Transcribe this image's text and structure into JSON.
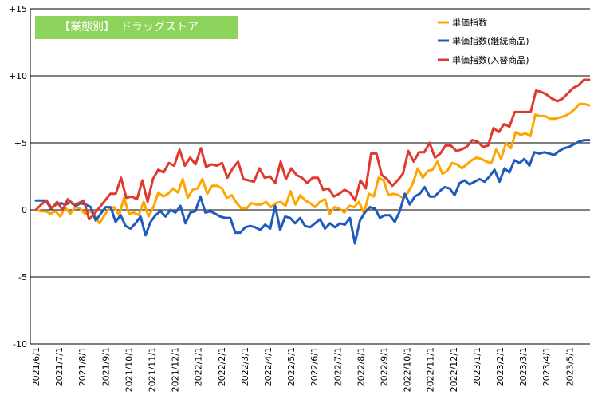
{
  "chart_data": {
    "type": "line",
    "title": "【業態別】　ドラッグストア",
    "ylim": [
      -10,
      15
    ],
    "y_ticks": [
      "+15",
      "+10",
      "+5",
      "0",
      "-5",
      "-10"
    ],
    "x_ticks": [
      "2021/6/1",
      "2021/7/1",
      "2021/8/1",
      "2021/9/1",
      "2021/10/1",
      "2021/11/1",
      "2021/12/1",
      "2022/1/1",
      "2022/2/1",
      "2022/3/1",
      "2022/4/1",
      "2022/5/1",
      "2022/6/1",
      "2022/7/1",
      "2022/8/1",
      "2022/9/1",
      "2022/10/1",
      "2022/11/1",
      "2022/12/1",
      "2023/1/1",
      "2023/2/1",
      "2023/3/1",
      "2023/4/1",
      "2023/5/1"
    ],
    "grid": "horizontal",
    "legend": "top-right",
    "series": [
      {
        "name": "単価指数",
        "color": "#ffa500",
        "values": [
          0,
          -0.1,
          -0.1,
          -0.3,
          -0.1,
          -0.5,
          0.2,
          -0.3,
          0.2,
          0.1,
          -0.3,
          -0.1,
          -0.4,
          -1.0,
          -0.4,
          0.1,
          0.2,
          -0.4,
          0.9,
          -0.3,
          -0.2,
          -0.4,
          0.6,
          -0.5,
          0.2,
          1.3,
          1.0,
          1.2,
          1.6,
          1.3,
          2.3,
          0.9,
          1.5,
          1.6,
          2.3,
          1.2,
          1.8,
          1.8,
          1.6,
          0.9,
          1.1,
          0.5,
          0.1,
          0.1,
          0.5,
          0.4,
          0.4,
          0.6,
          0.2,
          0.5,
          0.6,
          0.3,
          1.4,
          0.4,
          1.1,
          0.7,
          0.5,
          0.2,
          0.6,
          0.8,
          -0.3,
          0.2,
          0.1,
          -0.2,
          0.3,
          0.2,
          0.6,
          -0.3,
          1.2,
          1.0,
          2.4,
          2.2,
          1.1,
          1.2,
          1.1,
          0.9,
          1.3,
          2.0,
          3.1,
          2.4,
          2.9,
          3.0,
          3.6,
          2.7,
          2.9,
          3.5,
          3.4,
          3.1,
          3.4,
          3.7,
          3.9,
          3.8,
          3.6,
          3.5,
          4.5,
          3.8,
          5.0,
          4.6,
          5.8,
          5.6,
          5.7,
          5.5,
          7.1,
          7.0,
          7.0,
          6.8,
          6.8,
          6.9,
          7.0,
          7.2,
          7.5,
          7.9,
          7.9,
          7.8
        ]
      },
      {
        "name": "単価指数(継続商品)",
        "color": "#1f5bbf",
        "values": [
          0.7,
          0.7,
          0.7,
          0.1,
          0.4,
          0.5,
          0.4,
          0.6,
          0.3,
          0.5,
          0.4,
          0.2,
          -0.8,
          -0.3,
          0.2,
          0.2,
          -0.9,
          -0.4,
          -1.2,
          -1.4,
          -1.0,
          -0.5,
          -1.9,
          -0.9,
          -0.4,
          -0.1,
          -0.5,
          0.0,
          -0.2,
          0.3,
          -1.0,
          -0.2,
          -0.1,
          1.0,
          -0.2,
          -0.1,
          -0.3,
          -0.5,
          -0.6,
          -0.6,
          -1.7,
          -1.7,
          -1.3,
          -1.2,
          -1.3,
          -1.5,
          -1.1,
          -1.4,
          0.3,
          -1.5,
          -0.5,
          -0.6,
          -1.0,
          -0.6,
          -1.2,
          -1.3,
          -1.0,
          -0.7,
          -1.4,
          -1.0,
          -1.3,
          -1.0,
          -1.1,
          -0.6,
          -2.5,
          -0.8,
          -0.2,
          0.2,
          0.1,
          -0.6,
          -0.4,
          -0.4,
          -0.9,
          -0.1,
          1.2,
          0.4,
          1.0,
          1.2,
          1.7,
          1.0,
          1.0,
          1.4,
          1.7,
          1.6,
          1.1,
          2.0,
          2.2,
          1.9,
          2.1,
          2.3,
          2.1,
          2.5,
          3.0,
          2.1,
          3.1,
          2.8,
          3.7,
          3.5,
          3.8,
          3.3,
          4.3,
          4.2,
          4.3,
          4.2,
          4.1,
          4.4,
          4.6,
          4.7,
          4.9,
          5.1,
          5.2,
          5.2
        ]
      },
      {
        "name": "単価指数(入替商品)",
        "color": "#e03a2f",
        "values": [
          0,
          0.4,
          0.7,
          0.1,
          0.6,
          0,
          0.8,
          0.4,
          0.5,
          0.7,
          -0.7,
          -0.3,
          0.2,
          0.7,
          1.2,
          1.2,
          2.4,
          0.9,
          1.0,
          0.8,
          2.2,
          0.6,
          2.3,
          3.0,
          2.8,
          3.5,
          3.3,
          4.5,
          3.3,
          3.9,
          3.4,
          4.6,
          3.2,
          3.4,
          3.3,
          3.5,
          2.4,
          3.1,
          3.6,
          2.3,
          2.2,
          2.1,
          3.1,
          2.4,
          2.5,
          2.0,
          3.6,
          2.3,
          3.1,
          2.6,
          2.4,
          2.0,
          2.4,
          2.4,
          1.5,
          1.6,
          1.0,
          1.2,
          1.5,
          1.3,
          0.7,
          2.2,
          1.6,
          4.2,
          4.2,
          2.6,
          2.3,
          1.8,
          2.2,
          2.7,
          4.4,
          3.6,
          4.3,
          4.3,
          5.0,
          3.9,
          4.2,
          4.8,
          4.8,
          4.4,
          4.5,
          4.7,
          5.2,
          5.1,
          4.7,
          4.8,
          6.1,
          5.8,
          6.4,
          6.2,
          7.3,
          7.3,
          7.3,
          7.3,
          8.9,
          8.8,
          8.6,
          8.3,
          8.1,
          8.3,
          8.7,
          9.1,
          9.3,
          9.7,
          9.7
        ]
      }
    ]
  }
}
